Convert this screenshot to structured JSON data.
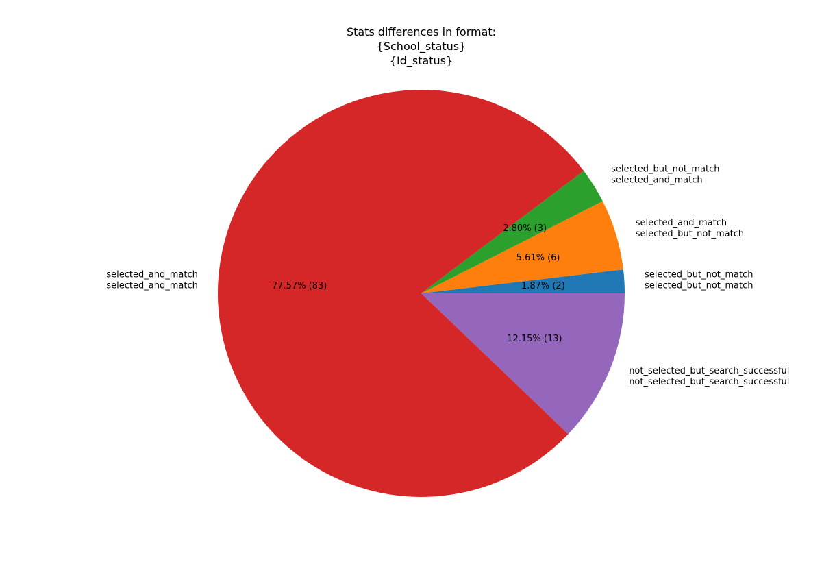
{
  "chart_data": {
    "type": "pie",
    "title_lines": [
      "Stats differences in format:",
      "{School_status}",
      "{Id_status}"
    ],
    "slices": [
      {
        "value": 2,
        "percent_label": "1.87%  (2)",
        "label_lines": [
          "selected_but_not_match",
          "selected_but_not_match"
        ],
        "color": "#1f77b4"
      },
      {
        "value": 6,
        "percent_label": "5.61%  (6)",
        "label_lines": [
          "selected_and_match",
          "selected_but_not_match"
        ],
        "color": "#ff7f0e"
      },
      {
        "value": 3,
        "percent_label": "2.80%  (3)",
        "label_lines": [
          "selected_but_not_match",
          "selected_and_match"
        ],
        "color": "#2ca02c"
      },
      {
        "value": 83,
        "percent_label": "77.57%  (83)",
        "label_lines": [
          "selected_and_match",
          "selected_and_match"
        ],
        "color": "#d62728"
      },
      {
        "value": 13,
        "percent_label": "12.15%  (13)",
        "label_lines": [
          "not_selected_but_search_successful",
          "not_selected_but_search_successful"
        ],
        "color": "#9467bd"
      }
    ],
    "start_angle_deg": 0,
    "direction": "counterclockwise"
  }
}
